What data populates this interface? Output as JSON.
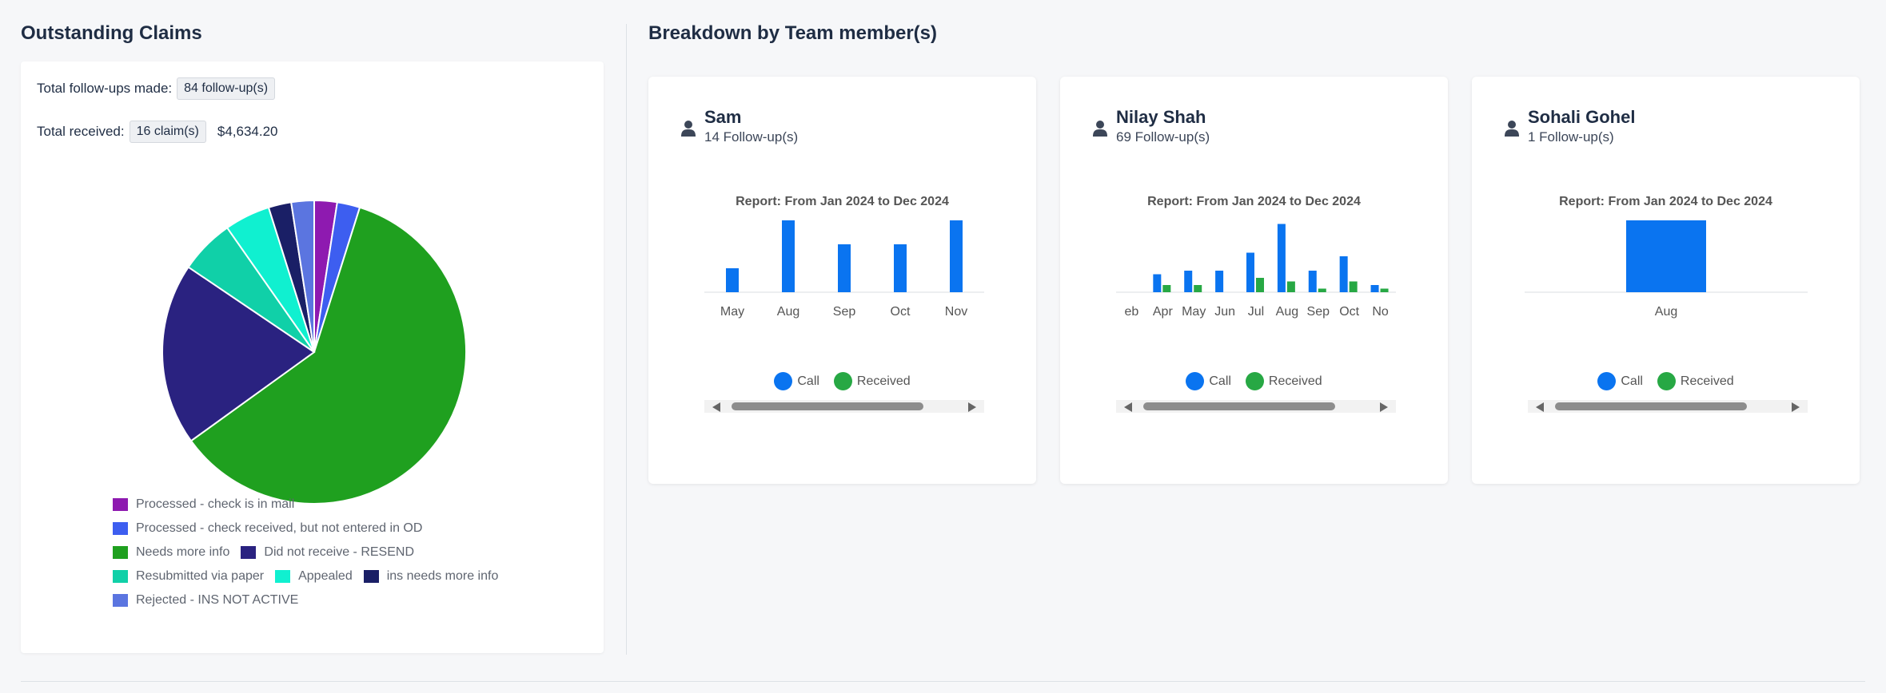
{
  "left": {
    "title": "Outstanding Claims",
    "followups_label": "Total follow-ups made:",
    "followups_value": "84 follow-up(s)",
    "received_label": "Total received:",
    "received_claims": "16 claim(s)",
    "received_amount": "$4,634.20"
  },
  "right": {
    "title": "Breakdown by Team member(s)"
  },
  "chart_data": [
    {
      "type": "pie",
      "categories": [
        "Processed - check is in mail",
        "Processed - check received, but not entered in OD",
        "Needs more info",
        "Did not receive - RESEND",
        "Resubmitted via paper",
        "Appealed",
        "ins needs more info",
        "Rejected - INS NOT ACTIVE"
      ],
      "values": [
        2.5,
        2.5,
        62,
        20,
        6,
        5,
        2.5,
        2.5
      ],
      "colors": [
        "#8e1ab0",
        "#3d5ef0",
        "#1fa01f",
        "#2a2280",
        "#10d0a8",
        "#10f0d0",
        "#1a1f66",
        "#5b75e0"
      ],
      "legend": "bottom"
    },
    {
      "type": "bar",
      "title": "Report: From Jan 2024 to Dec 2024",
      "categories": [
        "May",
        "Aug",
        "Sep",
        "Oct",
        "Nov"
      ],
      "series": [
        {
          "name": "Call",
          "values": [
            1,
            3,
            2,
            2,
            3
          ]
        },
        {
          "name": "Received",
          "values": [
            0,
            0,
            0,
            0,
            0
          ]
        }
      ],
      "ylim": [
        0,
        3
      ]
    },
    {
      "type": "bar",
      "title": "Report: From Jan 2024 to Dec 2024",
      "categories": [
        "eb",
        "Apr",
        "May",
        "Jun",
        "Jul",
        "Aug",
        "Sep",
        "Oct",
        "No"
      ],
      "series": [
        {
          "name": "Call",
          "values": [
            0,
            2.5,
            3,
            3,
            5.5,
            9.5,
            3,
            5,
            1
          ]
        },
        {
          "name": "Received",
          "values": [
            0,
            1,
            1,
            0,
            2,
            1.5,
            0.5,
            1.5,
            0.5
          ]
        }
      ],
      "ylim": [
        0,
        10
      ]
    },
    {
      "type": "bar",
      "title": "Report: From Jan 2024 to Dec 2024",
      "categories": [
        "Aug"
      ],
      "series": [
        {
          "name": "Call",
          "values": [
            1
          ]
        },
        {
          "name": "Received",
          "values": [
            0
          ]
        }
      ],
      "ylim": [
        0,
        1
      ]
    }
  ],
  "members": [
    {
      "name": "Sam",
      "followups": "14 Follow-up(s)",
      "report": "Report: From Jan 2024 to Dec 2024",
      "legend_call": "Call",
      "legend_received": "Received",
      "call_color": "#0a74f0",
      "received_color": "#27a844"
    },
    {
      "name": "Nilay Shah",
      "followups": "69 Follow-up(s)",
      "report": "Report: From Jan 2024 to Dec 2024",
      "legend_call": "Call",
      "legend_received": "Received",
      "call_color": "#0a74f0",
      "received_color": "#27a844"
    },
    {
      "name": "Sohali Gohel",
      "followups": "1 Follow-up(s)",
      "report": "Report: From Jan 2024 to Dec 2024",
      "legend_call": "Call",
      "legend_received": "Received",
      "call_color": "#0a74f0",
      "received_color": "#27a844"
    }
  ]
}
